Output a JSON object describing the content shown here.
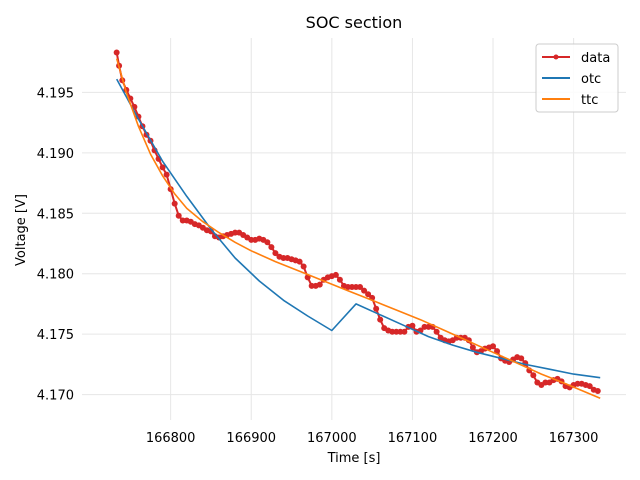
{
  "chart_data": {
    "type": "line",
    "title": "SOC section",
    "xlabel": "Time [s]",
    "ylabel": "Voltage [V]",
    "xlim": [
      166690,
      167365
    ],
    "ylim": [
      4.1679,
      4.1995
    ],
    "xticks": [
      166800,
      166900,
      167000,
      167100,
      167200,
      167300
    ],
    "yticks": [
      4.17,
      4.175,
      4.18,
      4.185,
      4.19,
      4.195
    ],
    "xtick_labels": [
      "166800",
      "166900",
      "167000",
      "167100",
      "167200",
      "167300"
    ],
    "ytick_labels": [
      "4.170",
      "4.175",
      "4.180",
      "4.185",
      "4.190",
      "4.195"
    ],
    "grid": true,
    "legend_position": "top-right",
    "series": [
      {
        "name": "data",
        "color": "#d62728",
        "marker": "circle",
        "x": [
          166733,
          166736,
          166740,
          166745,
          166750,
          166755,
          166760,
          166765,
          166770,
          166775,
          166780,
          166785,
          166790,
          166795,
          166800,
          166805,
          166810,
          166815,
          166820,
          166825,
          166830,
          166835,
          166840,
          166845,
          166850,
          166855,
          166860,
          166865,
          166870,
          166875,
          166880,
          166885,
          166890,
          166895,
          166900,
          166905,
          166910,
          166915,
          166920,
          166925,
          166930,
          166935,
          166940,
          166945,
          166950,
          166955,
          166960,
          166965,
          166970,
          166975,
          166980,
          166985,
          166990,
          166995,
          167000,
          167005,
          167010,
          167015,
          167020,
          167025,
          167030,
          167035,
          167040,
          167045,
          167050,
          167055,
          167060,
          167065,
          167070,
          167075,
          167080,
          167085,
          167090,
          167095,
          167100,
          167105,
          167110,
          167115,
          167120,
          167125,
          167130,
          167135,
          167140,
          167145,
          167150,
          167155,
          167160,
          167165,
          167170,
          167175,
          167180,
          167185,
          167190,
          167195,
          167200,
          167205,
          167210,
          167215,
          167220,
          167225,
          167230,
          167235,
          167240,
          167245,
          167250,
          167255,
          167260,
          167265,
          167270,
          167275,
          167280,
          167285,
          167290,
          167295,
          167300,
          167305,
          167310,
          167315,
          167320,
          167325,
          167330
        ],
        "y": [
          4.1983,
          4.1972,
          4.196,
          4.1952,
          4.1945,
          4.1938,
          4.193,
          4.1922,
          4.1915,
          4.191,
          4.1902,
          4.1895,
          4.1888,
          4.1882,
          4.187,
          4.1858,
          4.1848,
          4.1844,
          4.1844,
          4.1843,
          4.1841,
          4.184,
          4.1838,
          4.1836,
          4.1835,
          4.1831,
          4.183,
          4.1831,
          4.1832,
          4.1833,
          4.1834,
          4.1834,
          4.1832,
          4.183,
          4.1828,
          4.1828,
          4.1829,
          4.1828,
          4.1826,
          4.1822,
          4.1817,
          4.1814,
          4.1813,
          4.1813,
          4.1812,
          4.1811,
          4.181,
          4.1806,
          4.1797,
          4.179,
          4.179,
          4.1791,
          4.1795,
          4.1797,
          4.1798,
          4.1799,
          4.1795,
          4.179,
          4.1789,
          4.1789,
          4.1789,
          4.1789,
          4.1786,
          4.1783,
          4.178,
          4.1771,
          4.1762,
          4.1755,
          4.1753,
          4.1752,
          4.1752,
          4.1752,
          4.1752,
          4.1756,
          4.1757,
          4.1752,
          4.1753,
          4.1756,
          4.1756,
          4.1756,
          4.1752,
          4.1747,
          4.1745,
          4.1744,
          4.1745,
          4.1747,
          4.1747,
          4.1747,
          4.1745,
          4.1739,
          4.1735,
          4.1736,
          4.1738,
          4.1739,
          4.174,
          4.1736,
          4.173,
          4.1728,
          4.1727,
          4.1729,
          4.1731,
          4.173,
          4.1726,
          4.172,
          4.1716,
          4.171,
          4.1708,
          4.171,
          4.171,
          4.1712,
          4.1713,
          4.1711,
          4.1707,
          4.1706,
          4.1708,
          4.1709,
          4.1709,
          4.1708,
          4.1707,
          4.1704,
          4.1703
        ]
      },
      {
        "name": "otc",
        "color": "#1f77b4",
        "x": [
          166733,
          166760,
          166790,
          166820,
          166850,
          166880,
          166910,
          166940,
          166970,
          167000,
          167030,
          167060,
          167090,
          167120,
          167150,
          167180,
          167210,
          167240,
          167270,
          167300,
          167333
        ],
        "y": [
          4.1961,
          4.1928,
          4.1893,
          4.1864,
          4.1837,
          4.1813,
          4.1794,
          4.1778,
          4.1765,
          4.1753,
          4.1775,
          4.1766,
          4.1757,
          4.1748,
          4.1741,
          4.1735,
          4.173,
          4.1725,
          4.1721,
          4.1717,
          4.1714
        ]
      },
      {
        "name": "ttc",
        "color": "#ff7f0e",
        "x": [
          166733,
          166745,
          166760,
          166775,
          166790,
          166805,
          166820,
          166840,
          166860,
          166880,
          166900,
          166930,
          166960,
          166990,
          167020,
          167050,
          167080,
          167110,
          167140,
          167170,
          167200,
          167230,
          167260,
          167290,
          167333
        ],
        "y": [
          4.1978,
          4.195,
          4.1922,
          4.1899,
          4.1881,
          4.1866,
          4.1854,
          4.1843,
          4.1834,
          4.1826,
          4.1819,
          4.181,
          4.1802,
          4.1794,
          4.1786,
          4.1778,
          4.177,
          4.1762,
          4.1753,
          4.1744,
          4.1735,
          4.1726,
          4.1717,
          4.1709,
          4.1697
        ]
      }
    ]
  }
}
